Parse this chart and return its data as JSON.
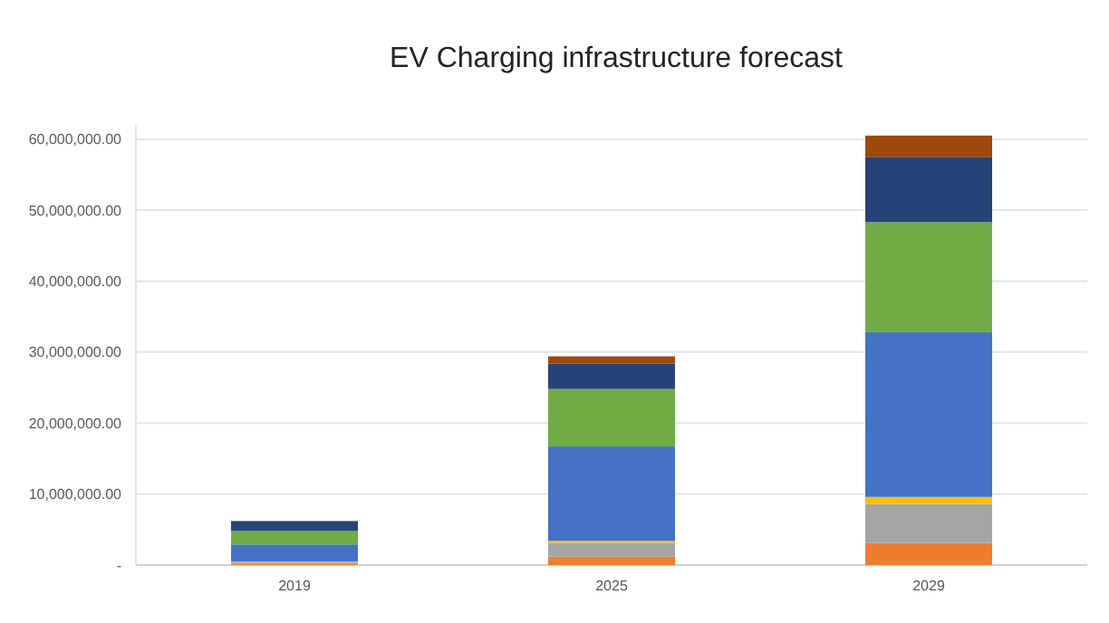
{
  "chart_data": {
    "type": "bar",
    "title": "EV Charging infrastructure forecast",
    "categories": [
      "2019",
      "2025",
      "2029"
    ],
    "stacked": true,
    "grid": "y",
    "series": [
      {
        "color": "#ed7d31",
        "values": [
          200000,
          1200000,
          3100000
        ]
      },
      {
        "color": "#a5a5a5",
        "values": [
          200000,
          1900000,
          5500000
        ]
      },
      {
        "color": "#ffc000",
        "values": [
          100000,
          300000,
          1000000
        ]
      },
      {
        "color": "#4472c4",
        "values": [
          2400000,
          13300000,
          23200000
        ]
      },
      {
        "color": "#70ad47",
        "values": [
          1900000,
          8100000,
          15500000
        ]
      },
      {
        "color": "#264478",
        "values": [
          1400000,
          3600000,
          9200000
        ]
      },
      {
        "color": "#9e480e",
        "values": [
          0,
          1000000,
          3000000
        ]
      }
    ],
    "ylim": [
      0,
      62000000
    ],
    "yticks": [
      {
        "value": 0,
        "label": "-"
      },
      {
        "value": 10000000,
        "label": "10,000,000.00"
      },
      {
        "value": 20000000,
        "label": "20,000,000.00"
      },
      {
        "value": 30000000,
        "label": "30,000,000.00"
      },
      {
        "value": 40000000,
        "label": "40,000,000.00"
      },
      {
        "value": 50000000,
        "label": "50,000,000.00"
      },
      {
        "value": 60000000,
        "label": "60,000,000.00"
      }
    ]
  }
}
